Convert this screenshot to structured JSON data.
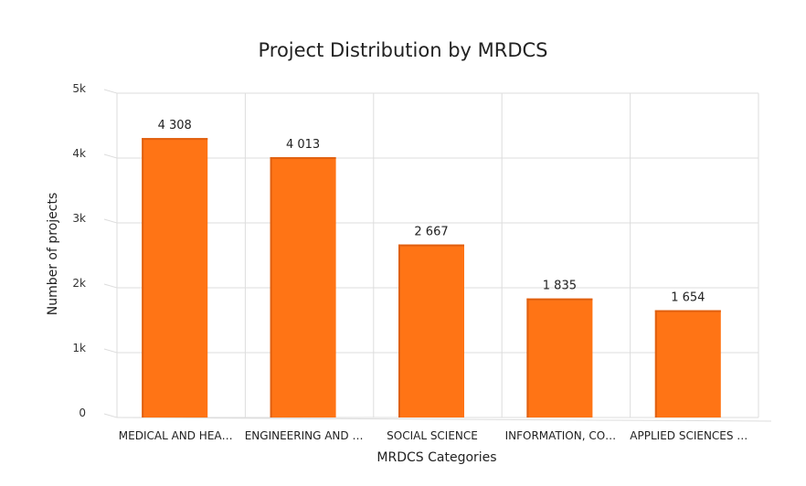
{
  "chart_data": {
    "type": "bar",
    "title": "Project Distribution by MRDCS",
    "xlabel": "MRDCS Categories",
    "ylabel": "Number of projects",
    "categories": [
      "MEDICAL AND HEA…",
      "ENGINEERING AND …",
      "SOCIAL SCIENCE",
      "INFORMATION, CO…",
      "APPLIED SCIENCES …"
    ],
    "values": [
      4308,
      4013,
      2667,
      1835,
      1654
    ],
    "data_labels": [
      "4 308",
      "4 013",
      "2 667",
      "1 835",
      "1 654"
    ],
    "yticks": [
      0,
      1000,
      2000,
      3000,
      4000,
      5000
    ],
    "ytick_labels": [
      "0",
      "1k",
      "2k",
      "3k",
      "4k",
      "5k"
    ],
    "ylim": [
      0,
      5000
    ],
    "grid": true,
    "legend": "none",
    "bar_color": "#FF7415",
    "bar_edge_color": "#E06010",
    "grid_color": "#DDDDDD"
  }
}
